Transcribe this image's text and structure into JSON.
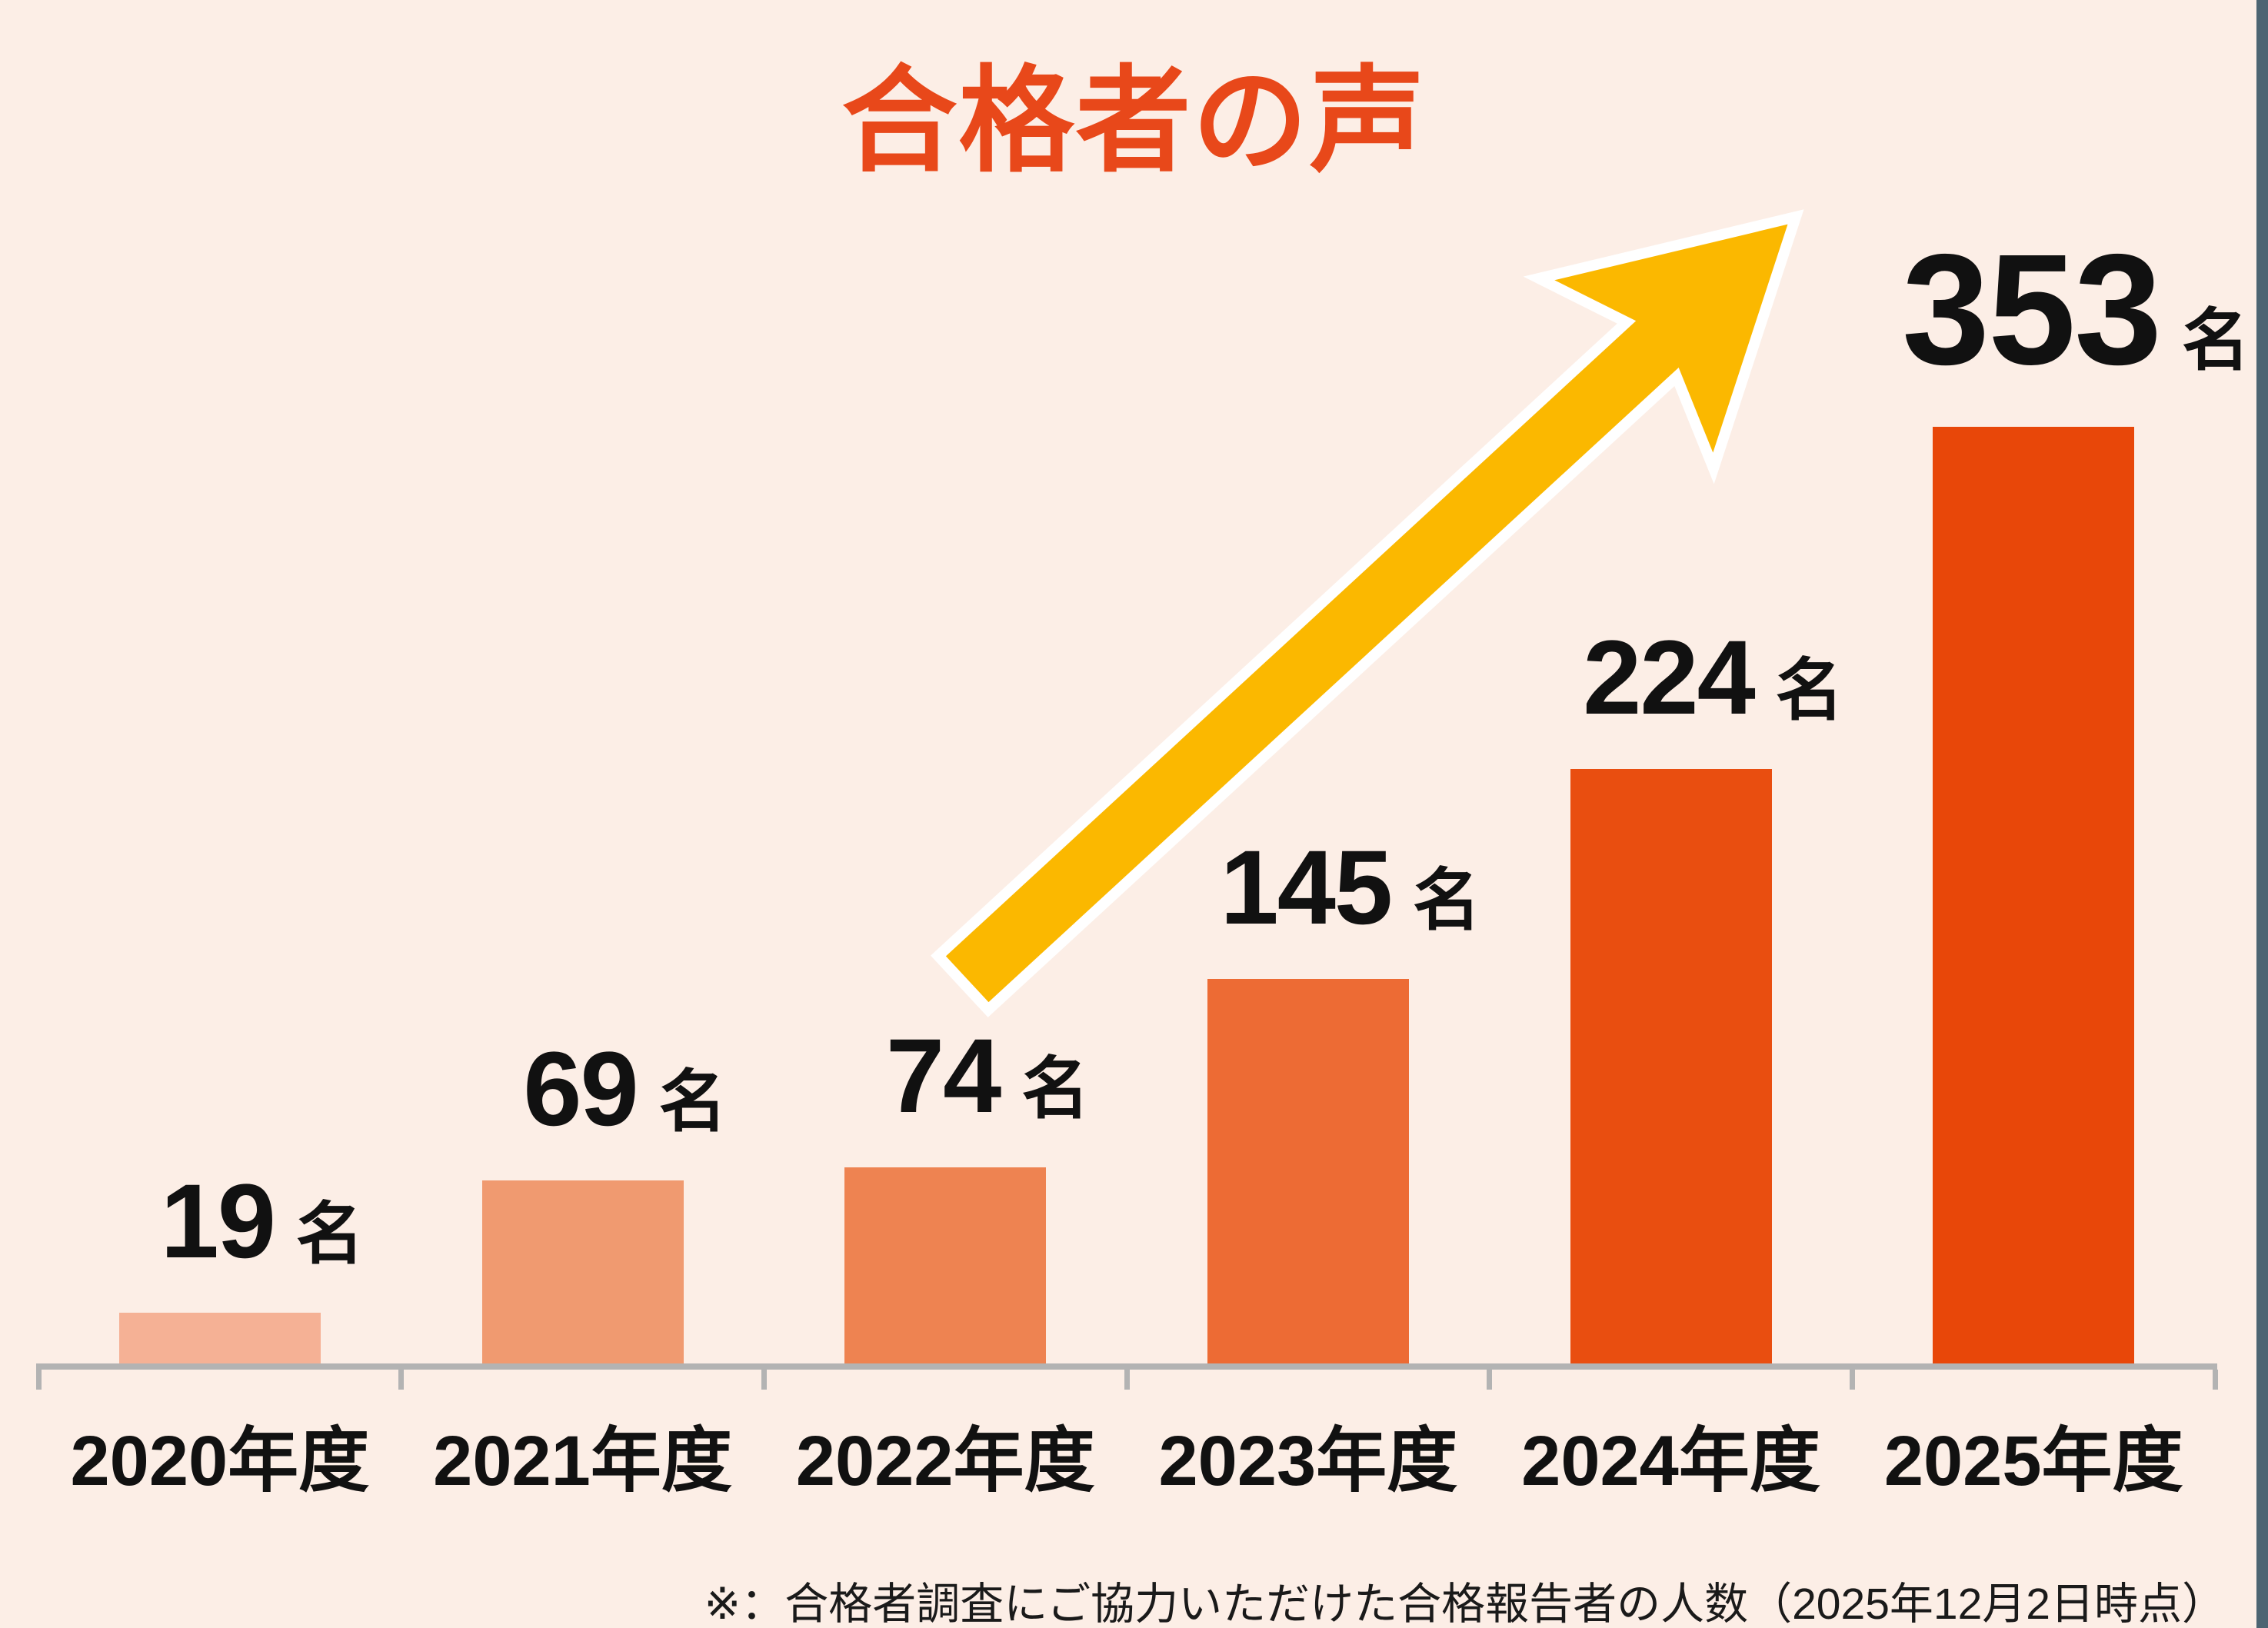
{
  "title": {
    "text": "合格者の声"
  },
  "unit_suffix": "名",
  "footnote": "※：合格者調査にご協力いただけた合格報告者の人数（2025年12月2日時点）",
  "colors": {
    "background": "#FCEEE6",
    "title": "#E8481A",
    "axis": "#B3B3B3",
    "arrow_fill": "#FBB800",
    "arrow_stroke": "#FFFFFF",
    "label_text": "#111111",
    "right_edge_strip": "#4C6472"
  },
  "chart_data": {
    "type": "bar",
    "title": "合格者の声",
    "categories": [
      "2020年度",
      "2021年度",
      "2022年度",
      "2023年度",
      "2024年度",
      "2025年度"
    ],
    "values": [
      19,
      69,
      74,
      145,
      224,
      353
    ],
    "unit": "名",
    "bar_colors": [
      "#F5B195",
      "#F09A70",
      "#EE8351",
      "#ED6B34",
      "#E94E10",
      "#E84709"
    ],
    "xlabel": "",
    "ylabel": "",
    "ylim": [
      0,
      390
    ],
    "grid": false,
    "legend": false,
    "annotations": [
      {
        "type": "arrow",
        "meaning": "upward-trend",
        "description": "大きな黄色の右肩上がり矢印"
      }
    ]
  }
}
